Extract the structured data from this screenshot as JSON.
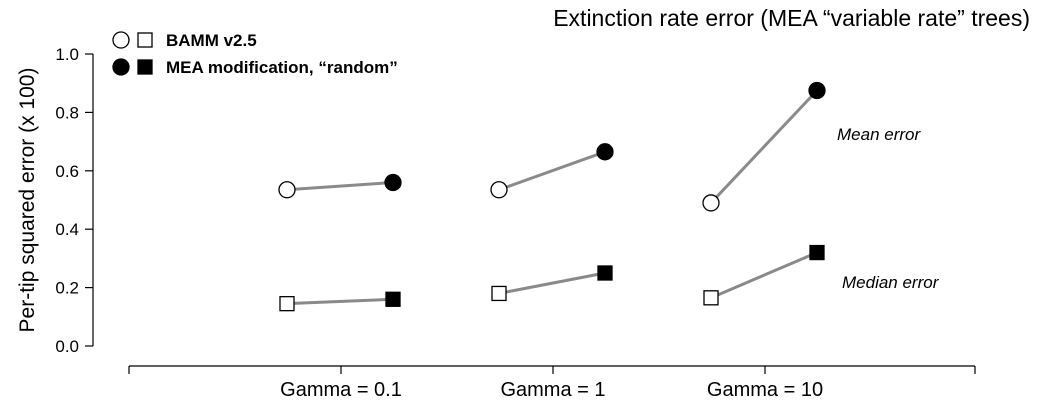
{
  "chart_data": {
    "type": "scatter",
    "title": "Extinction rate error (MEA “variable rate” trees)",
    "ylabel": "Per-tip squared error (x 100)",
    "xlabel": "",
    "ylim": [
      0,
      1.0
    ],
    "yticks": [
      "0.0",
      "0.2",
      "0.4",
      "0.6",
      "0.8",
      "1.0"
    ],
    "categories": [
      "Gamma = 0.1",
      "Gamma = 1",
      "Gamma = 10"
    ],
    "legend": {
      "placement": "top-left",
      "entries": [
        {
          "label": "BAMM v2.5",
          "markers": [
            "open-circle",
            "open-square"
          ]
        },
        {
          "label": "MEA modification, “random”",
          "markers": [
            "filled-circle",
            "filled-square"
          ]
        }
      ]
    },
    "series": [
      {
        "legend": "BAMM v2.5",
        "statistic": "Mean error",
        "marker": "open-circle",
        "values": [
          0.535,
          0.535,
          0.49
        ]
      },
      {
        "legend": "MEA modification, “random”",
        "statistic": "Mean error",
        "marker": "filled-circle",
        "values": [
          0.56,
          0.665,
          0.875
        ]
      },
      {
        "legend": "BAMM v2.5",
        "statistic": "Median error",
        "marker": "open-square",
        "values": [
          0.145,
          0.18,
          0.165
        ]
      },
      {
        "legend": "MEA modification, “random”",
        "statistic": "Median error",
        "marker": "filled-square",
        "values": [
          0.16,
          0.25,
          0.32
        ]
      }
    ],
    "annotations": {
      "mean": "Mean error",
      "median": "Median error"
    },
    "grid": false,
    "colors": {
      "connector": "#8a8a8a",
      "open_fill": "#ffffff",
      "filled": "#000000"
    }
  }
}
